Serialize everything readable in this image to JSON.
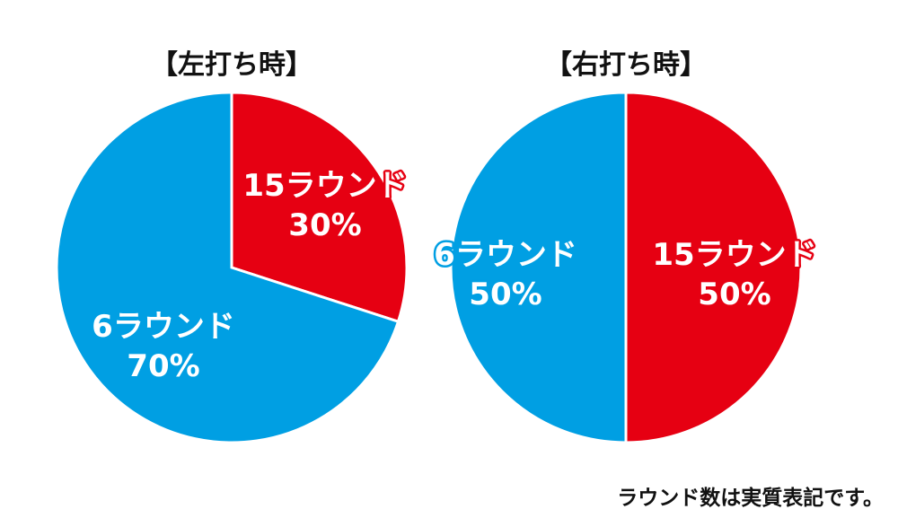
{
  "chart_data": [
    {
      "type": "pie",
      "title": "【左打ち時】",
      "slices": [
        {
          "name": "15ラウンド",
          "value": 30,
          "label": "30%",
          "color": "#e60012"
        },
        {
          "name": "6ラウンド",
          "value": 70,
          "label": "70%",
          "color": "#009fe3"
        }
      ]
    },
    {
      "type": "pie",
      "title": "【右打ち時】",
      "slices": [
        {
          "name": "15ラウンド",
          "value": 50,
          "label": "50%",
          "color": "#e60012"
        },
        {
          "name": "6ラウンド",
          "value": 50,
          "label": "50%",
          "color": "#009fe3"
        }
      ]
    }
  ],
  "footnote": "ラウンド数は実質表記です。"
}
